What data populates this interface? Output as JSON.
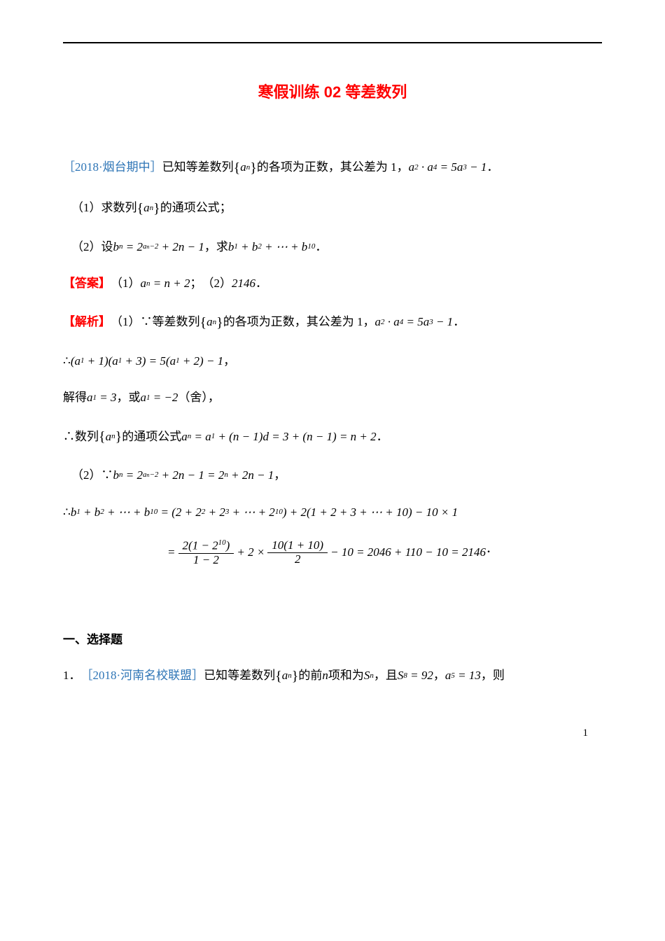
{
  "title": "寒假训练 02 等差数列",
  "colors": {
    "title": "#ff0000",
    "blue_text": "#2e75b6",
    "red_text": "#ff0000",
    "body": "#000000",
    "background": "#ffffff",
    "rule": "#000000"
  },
  "typography": {
    "title_fontsize": 22,
    "body_fontsize": 17,
    "sub_sup_fontsize": 11,
    "title_font": "SimHei",
    "body_font": "SimSun",
    "math_font": "Times New Roman"
  },
  "problem_intro": {
    "source": "［2018·烟台期中］",
    "text_a": "已知等差数列",
    "seq": "{aₙ}",
    "text_b": "的各项为正数，其公差为 1，",
    "equation": "a₂ · a₄ = 5a₃ − 1",
    "period": "．"
  },
  "q1": {
    "label": "（1）求数列",
    "seq": "{aₙ}",
    "tail": "的通项公式；"
  },
  "q2": {
    "label": "（2）设",
    "bn_def": "bₙ = 2^{aₙ−2} + 2n − 1",
    "mid": "，求",
    "sum": "b₁ + b₂ + ⋯ + b₁₀",
    "period": "．"
  },
  "answer": {
    "label": "【答案】",
    "part1_label": "（1）",
    "part1_eq": "aₙ = n + 2",
    "sep": "；",
    "part2_label": "（2）",
    "part2_val": "2146",
    "period": "．"
  },
  "analysis": {
    "label": "【解析】",
    "p1_label": "（1）∵等差数列",
    "seq": "{aₙ}",
    "p1_text": "的各项为正数，其公差为 1，",
    "p1_eq": "a₂ · a₄ = 5a₃ − 1",
    "period": "．",
    "therefore1": "∴",
    "eq1": "(a₁ + 1)(a₁ + 3) = 5(a₁ + 2) − 1",
    "comma": "，",
    "solve_text_a": "解得",
    "a1_val1": "a₁ = 3",
    "solve_text_b": "，或",
    "a1_val2": "a₁ = −2",
    "solve_text_c": "（舍），",
    "therefore2": "∴数列",
    "general_text": "的通项公式",
    "general_eq": "aₙ = a₁ + (n − 1)d = 3 + (n − 1) = n + 2",
    "p2_label": "（2）∵",
    "bn_expand": "bₙ = 2^{aₙ−2} + 2n − 1 = 2ⁿ + 2n − 1",
    "therefore3": "∴",
    "sum_lhs": "b₁ + b₂ + ⋯ + b₁₀",
    "sum_rhs1": "= (2 + 2² + 2³ + ⋯ + 2¹⁰) + 2(1 + 2 + 3 + ⋯ + 10) − 10 × 1",
    "final_line": {
      "eq_prefix": "=",
      "frac1_num": "2(1 − 2¹⁰)",
      "frac1_den": "1 − 2",
      "plus": "+ 2 ×",
      "frac2_num": "10(1 + 10)",
      "frac2_den": "2",
      "tail": "− 10 = 2046 + 110 − 10 = 2146"
    }
  },
  "section1": {
    "heading": "一、选择题",
    "item1": {
      "num": "1．",
      "source": "［2018·河南名校联盟］",
      "text_a": "已知等差数列",
      "seq": "{aₙ}",
      "text_b": "的前",
      "n": "n",
      "text_c": "项和为",
      "Sn": "Sₙ",
      "text_d": "，且",
      "eq1": "S₈ = 92",
      "text_e": "，",
      "eq2": "a₅ = 13",
      "text_f": "，则"
    }
  },
  "page_number": "1"
}
